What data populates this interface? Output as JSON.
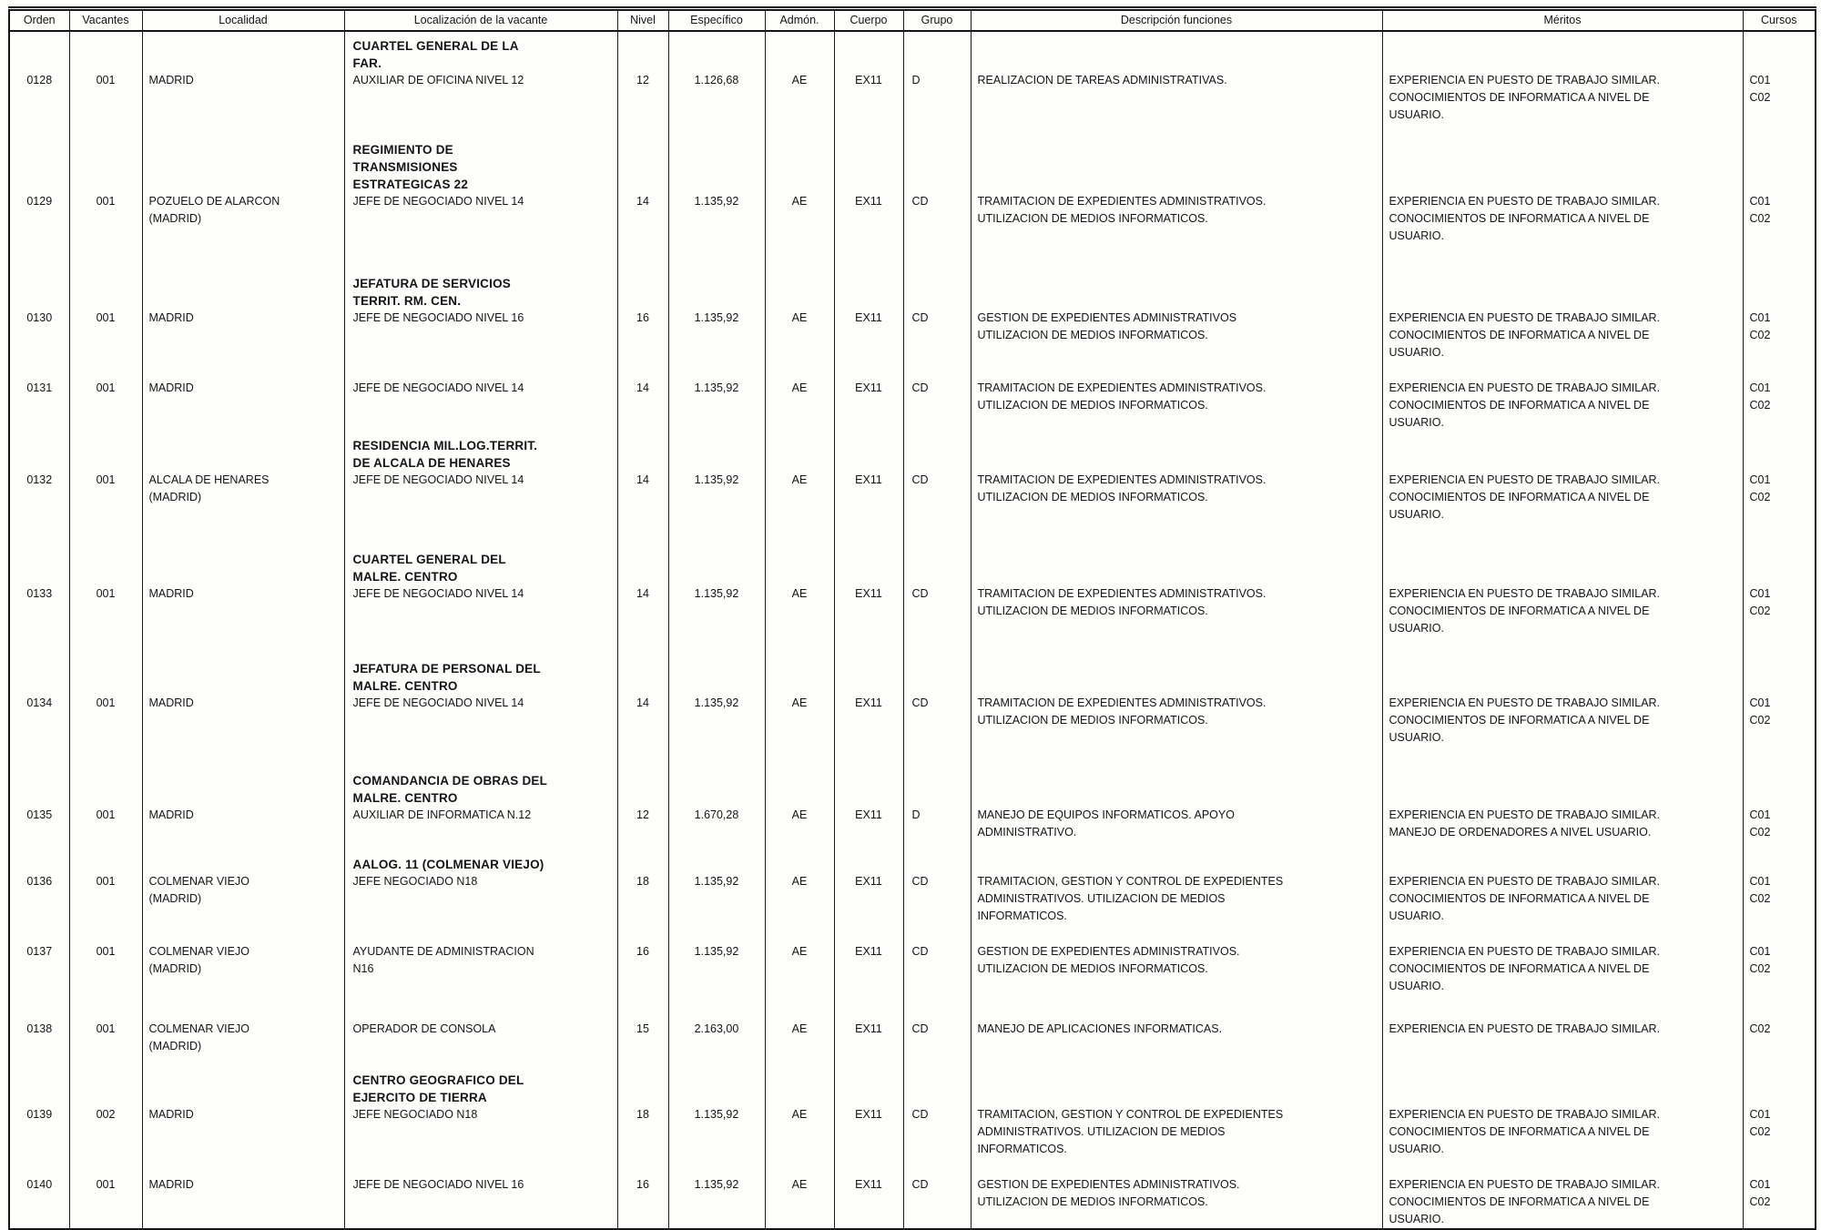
{
  "document": {
    "columns": [
      {
        "key": "orden",
        "label": "Orden"
      },
      {
        "key": "vacantes",
        "label": "Vacantes"
      },
      {
        "key": "localidad",
        "label": "Localidad"
      },
      {
        "key": "localizacion",
        "label": "Localización de la vacante"
      },
      {
        "key": "nivel",
        "label": "Nivel"
      },
      {
        "key": "especifico",
        "label": "Específico"
      },
      {
        "key": "admon",
        "label": "Admón."
      },
      {
        "key": "cuerpo",
        "label": "Cuerpo"
      },
      {
        "key": "grupo",
        "label": "Grupo"
      },
      {
        "key": "descripcion",
        "label": "Descripción funciones"
      },
      {
        "key": "meritos",
        "label": "Méritos"
      },
      {
        "key": "cursos",
        "label": "Cursos"
      }
    ],
    "rows": [
      {
        "orden": "0128",
        "vacantes": "001",
        "localidad": [
          "MADRID"
        ],
        "unidad": [
          "CUARTEL GENERAL DE LA",
          "FAR."
        ],
        "puesto": [
          "AUXILIAR DE OFICINA NIVEL 12"
        ],
        "nivel": "12",
        "especifico": "1.126,68",
        "admon": "AE",
        "cuerpo": "EX11",
        "grupo": "D",
        "descripcion": [
          "REALIZACION DE TAREAS ADMINISTRATIVAS."
        ],
        "meritos": [
          "EXPERIENCIA EN PUESTO DE TRABAJO SIMILAR.",
          "CONOCIMIENTOS DE INFORMATICA A NIVEL DE",
          "USUARIO."
        ],
        "cursos": [
          "C01",
          "C02"
        ]
      },
      {
        "orden": "0129",
        "vacantes": "001",
        "localidad": [
          "POZUELO DE ALARCON",
          "(MADRID)"
        ],
        "unidad": [
          "REGIMIENTO DE",
          "TRANSMISIONES",
          "ESTRATEGICAS 22"
        ],
        "puesto": [
          "JEFE DE NEGOCIADO NIVEL 14"
        ],
        "nivel": "14",
        "especifico": "1.135,92",
        "admon": "AE",
        "cuerpo": "EX11",
        "grupo": "CD",
        "descripcion": [
          "TRAMITACION DE EXPEDIENTES ADMINISTRATIVOS.",
          "UTILIZACION DE MEDIOS INFORMATICOS."
        ],
        "meritos": [
          "EXPERIENCIA EN PUESTO DE TRABAJO SIMILAR.",
          "CONOCIMIENTOS DE INFORMATICA A NIVEL DE",
          "USUARIO."
        ],
        "cursos": [
          "C01",
          "C02"
        ]
      },
      {
        "orden": "0130",
        "vacantes": "001",
        "localidad": [
          "MADRID"
        ],
        "unidad": [
          "JEFATURA DE SERVICIOS",
          "TERRIT. RM. CEN."
        ],
        "puesto": [
          "JEFE DE NEGOCIADO NIVEL 16"
        ],
        "nivel": "16",
        "especifico": "1.135,92",
        "admon": "AE",
        "cuerpo": "EX11",
        "grupo": "CD",
        "descripcion": [
          "GESTION DE EXPEDIENTES ADMINISTRATIVOS",
          "UTILIZACION DE MEDIOS INFORMATICOS."
        ],
        "meritos": [
          "EXPERIENCIA EN PUESTO DE TRABAJO SIMILAR.",
          "CONOCIMIENTOS DE INFORMATICA A NIVEL DE",
          "USUARIO."
        ],
        "cursos": [
          "C01",
          "C02"
        ]
      },
      {
        "orden": "0131",
        "vacantes": "001",
        "localidad": [
          "MADRID"
        ],
        "unidad": [],
        "puesto": [
          "JEFE DE NEGOCIADO NIVEL 14"
        ],
        "nivel": "14",
        "especifico": "1.135,92",
        "admon": "AE",
        "cuerpo": "EX11",
        "grupo": "CD",
        "descripcion": [
          "TRAMITACION DE EXPEDIENTES ADMINISTRATIVOS.",
          "UTILIZACION DE MEDIOS INFORMATICOS."
        ],
        "meritos": [
          "EXPERIENCIA EN PUESTO DE TRABAJO SIMILAR.",
          "CONOCIMIENTOS DE INFORMATICA A NIVEL DE",
          "USUARIO."
        ],
        "cursos": [
          "C01",
          "C02"
        ]
      },
      {
        "orden": "0132",
        "vacantes": "001",
        "localidad": [
          "ALCALA DE HENARES",
          "(MADRID)"
        ],
        "unidad": [
          "RESIDENCIA MIL.LOG.TERRIT.",
          "DE ALCALA DE HENARES"
        ],
        "puesto": [
          "JEFE DE NEGOCIADO NIVEL 14"
        ],
        "nivel": "14",
        "especifico": "1.135,92",
        "admon": "AE",
        "cuerpo": "EX11",
        "grupo": "CD",
        "descripcion": [
          "TRAMITACION DE EXPEDIENTES ADMINISTRATIVOS.",
          "UTILIZACION DE MEDIOS INFORMATICOS."
        ],
        "meritos": [
          "EXPERIENCIA EN PUESTO DE TRABAJO SIMILAR.",
          "CONOCIMIENTOS DE INFORMATICA A NIVEL DE",
          "USUARIO."
        ],
        "cursos": [
          "C01",
          "C02"
        ]
      },
      {
        "orden": "0133",
        "vacantes": "001",
        "localidad": [
          "MADRID"
        ],
        "unidad": [
          "CUARTEL GENERAL DEL",
          "MALRE. CENTRO"
        ],
        "puesto": [
          "JEFE DE NEGOCIADO NIVEL 14"
        ],
        "nivel": "14",
        "especifico": "1.135,92",
        "admon": "AE",
        "cuerpo": "EX11",
        "grupo": "CD",
        "descripcion": [
          "TRAMITACION DE EXPEDIENTES ADMINISTRATIVOS.",
          "UTILIZACION DE MEDIOS INFORMATICOS."
        ],
        "meritos": [
          "EXPERIENCIA EN PUESTO DE TRABAJO SIMILAR.",
          "CONOCIMIENTOS DE INFORMATICA A NIVEL DE",
          "USUARIO."
        ],
        "cursos": [
          "C01",
          "C02"
        ]
      },
      {
        "orden": "0134",
        "vacantes": "001",
        "localidad": [
          "MADRID"
        ],
        "unidad": [
          "JEFATURA DE PERSONAL DEL",
          "MALRE. CENTRO"
        ],
        "puesto": [
          "JEFE DE NEGOCIADO NIVEL 14"
        ],
        "nivel": "14",
        "especifico": "1.135,92",
        "admon": "AE",
        "cuerpo": "EX11",
        "grupo": "CD",
        "descripcion": [
          "TRAMITACION DE EXPEDIENTES ADMINISTRATIVOS.",
          "UTILIZACION DE MEDIOS INFORMATICOS."
        ],
        "meritos": [
          "EXPERIENCIA EN PUESTO DE TRABAJO SIMILAR.",
          "CONOCIMIENTOS DE INFORMATICA A NIVEL DE",
          "USUARIO."
        ],
        "cursos": [
          "C01",
          "C02"
        ]
      },
      {
        "orden": "0135",
        "vacantes": "001",
        "localidad": [
          "MADRID"
        ],
        "unidad": [
          "COMANDANCIA DE OBRAS DEL",
          "MALRE. CENTRO"
        ],
        "puesto": [
          "AUXILIAR DE INFORMATICA N.12"
        ],
        "nivel": "12",
        "especifico": "1.670,28",
        "admon": "AE",
        "cuerpo": "EX11",
        "grupo": "D",
        "descripcion": [
          "MANEJO DE EQUIPOS INFORMATICOS. APOYO",
          "ADMINISTRATIVO."
        ],
        "meritos": [
          "EXPERIENCIA EN PUESTO DE TRABAJO SIMILAR.",
          "MANEJO DE ORDENADORES A NIVEL USUARIO."
        ],
        "cursos": [
          "C01",
          "C02"
        ]
      },
      {
        "orden": "0136",
        "vacantes": "001",
        "localidad": [
          "COLMENAR VIEJO",
          "(MADRID)"
        ],
        "unidad": [
          "AALOG. 11 (COLMENAR VIEJO)"
        ],
        "puesto": [
          "JEFE NEGOCIADO N18"
        ],
        "nivel": "18",
        "especifico": "1.135,92",
        "admon": "AE",
        "cuerpo": "EX11",
        "grupo": "CD",
        "descripcion": [
          "TRAMITACION, GESTION Y CONTROL DE EXPEDIENTES",
          "ADMINISTRATIVOS. UTILIZACION DE MEDIOS",
          "INFORMATICOS."
        ],
        "meritos": [
          "EXPERIENCIA EN PUESTO DE TRABAJO SIMILAR.",
          "CONOCIMIENTOS DE INFORMATICA A NIVEL DE",
          "USUARIO."
        ],
        "cursos": [
          "C01",
          "C02"
        ]
      },
      {
        "orden": "0137",
        "vacantes": "001",
        "localidad": [
          "COLMENAR VIEJO",
          "(MADRID)"
        ],
        "unidad": [],
        "puesto": [
          "AYUDANTE DE ADMINISTRACION",
          "N16"
        ],
        "nivel": "16",
        "especifico": "1.135,92",
        "admon": "AE",
        "cuerpo": "EX11",
        "grupo": "CD",
        "descripcion": [
          "GESTION DE EXPEDIENTES ADMINISTRATIVOS.",
          "UTILIZACION DE MEDIOS INFORMATICOS."
        ],
        "meritos": [
          "EXPERIENCIA EN PUESTO DE TRABAJO SIMILAR.",
          "CONOCIMIENTOS DE INFORMATICA A NIVEL DE",
          "USUARIO."
        ],
        "cursos": [
          "C01",
          "C02"
        ]
      },
      {
        "orden": "0138",
        "vacantes": "001",
        "localidad": [
          "COLMENAR VIEJO",
          "(MADRID)"
        ],
        "unidad": [],
        "puesto": [
          "OPERADOR DE CONSOLA"
        ],
        "nivel": "15",
        "especifico": "2.163,00",
        "admon": "AE",
        "cuerpo": "EX11",
        "grupo": "CD",
        "descripcion": [
          "MANEJO DE APLICACIONES INFORMATICAS."
        ],
        "meritos": [
          "EXPERIENCIA EN PUESTO DE TRABAJO SIMILAR."
        ],
        "cursos": [
          "C02"
        ]
      },
      {
        "orden": "0139",
        "vacantes": "002",
        "localidad": [
          "MADRID"
        ],
        "unidad": [
          "CENTRO GEOGRAFICO DEL",
          "EJERCITO DE TIERRA"
        ],
        "puesto": [
          "JEFE NEGOCIADO N18"
        ],
        "nivel": "18",
        "especifico": "1.135,92",
        "admon": "AE",
        "cuerpo": "EX11",
        "grupo": "CD",
        "descripcion": [
          "TRAMITACION, GESTION Y CONTROL DE EXPEDIENTES",
          "ADMINISTRATIVOS. UTILIZACION DE MEDIOS",
          "INFORMATICOS."
        ],
        "meritos": [
          "EXPERIENCIA EN PUESTO DE TRABAJO SIMILAR.",
          "CONOCIMIENTOS DE INFORMATICA A NIVEL DE",
          "USUARIO."
        ],
        "cursos": [
          "C01",
          "C02"
        ]
      },
      {
        "orden": "0140",
        "vacantes": "001",
        "localidad": [
          "MADRID"
        ],
        "unidad": [],
        "puesto": [
          "JEFE DE NEGOCIADO NIVEL 16"
        ],
        "nivel": "16",
        "especifico": "1.135,92",
        "admon": "AE",
        "cuerpo": "EX11",
        "grupo": "CD",
        "descripcion": [
          "GESTION DE EXPEDIENTES ADMINISTRATIVOS.",
          "UTILIZACION DE MEDIOS INFORMATICOS."
        ],
        "meritos": [
          "EXPERIENCIA EN PUESTO DE TRABAJO SIMILAR.",
          "CONOCIMIENTOS DE INFORMATICA A NIVEL DE",
          "USUARIO."
        ],
        "cursos": [
          "C01",
          "C02"
        ]
      }
    ]
  }
}
